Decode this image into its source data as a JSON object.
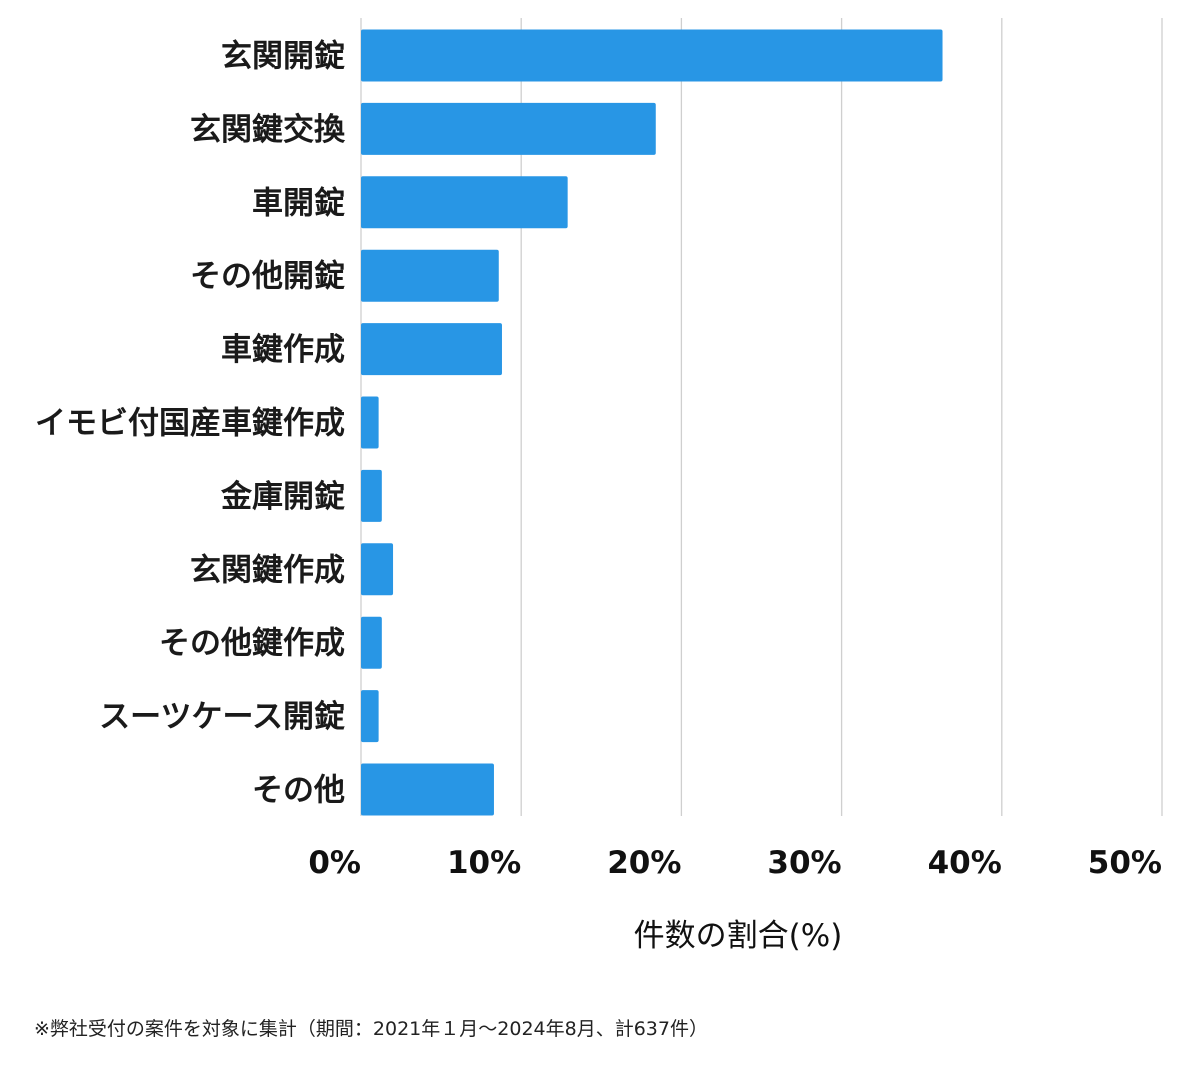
{
  "chart_data": {
    "type": "bar",
    "orientation": "horizontal",
    "categories": [
      "玄関開錠",
      "玄関鍵交換",
      "車開錠",
      "その他開錠",
      "車鍵作成",
      "イモビ付国産車鍵作成",
      "金庫開錠",
      "玄関鍵作成",
      "その他鍵作成",
      "スーツケース開錠",
      "その他"
    ],
    "values": [
      36.3,
      18.4,
      12.9,
      8.6,
      8.8,
      1.1,
      1.3,
      2.0,
      1.3,
      1.1,
      8.3
    ],
    "xlabel": "件数の割合(%)",
    "xlim": [
      0,
      50
    ],
    "xticks": [
      0,
      10,
      20,
      30,
      40,
      50
    ],
    "xtick_labels": [
      "0%",
      "10%",
      "20%",
      "30%",
      "40%",
      "50%"
    ],
    "grid": true,
    "bar_color": "#2896e5"
  },
  "footnote": "※弊社受付の案件を対象に集計（期間：2021年１月〜2024年8月、計637件）"
}
